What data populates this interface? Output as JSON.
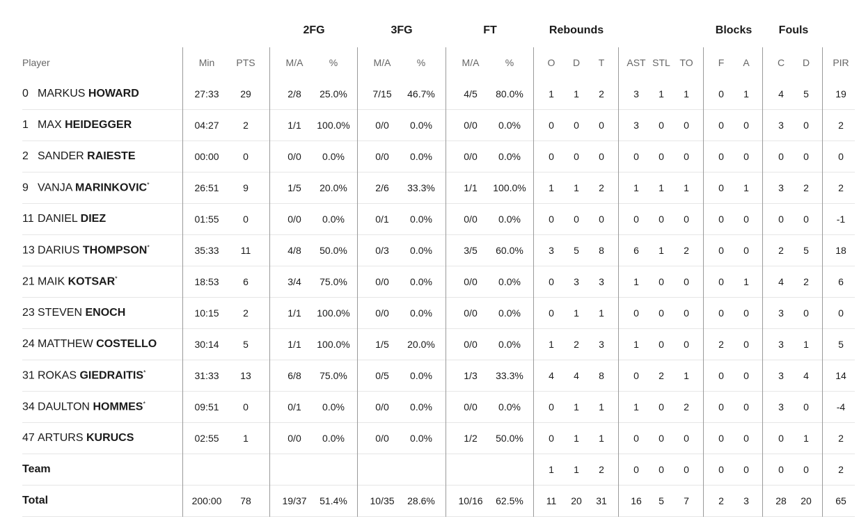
{
  "header_groups": [
    "2FG",
    "3FG",
    "FT",
    "Rebounds",
    "Blocks",
    "Fouls"
  ],
  "columns": [
    "Player",
    "Min",
    "PTS",
    "M/A",
    "%",
    "M/A",
    "%",
    "M/A",
    "%",
    "O",
    "D",
    "T",
    "AST",
    "STL",
    "TO",
    "F",
    "A",
    "C",
    "D",
    "PIR"
  ],
  "players": [
    {
      "number": "0",
      "first": "MARKUS",
      "last": "HOWARD",
      "stats": [
        "27:33",
        "29",
        "2/8",
        "25.0%",
        "7/15",
        "46.7%",
        "4/5",
        "80.0%",
        "1",
        "1",
        "2",
        "3",
        "1",
        "1",
        "0",
        "1",
        "4",
        "5",
        "19"
      ]
    },
    {
      "number": "1",
      "first": "MAX",
      "last": "HEIDEGGER",
      "stats": [
        "04:27",
        "2",
        "1/1",
        "100.0%",
        "0/0",
        "0.0%",
        "0/0",
        "0.0%",
        "0",
        "0",
        "0",
        "3",
        "0",
        "0",
        "0",
        "0",
        "3",
        "0",
        "2"
      ]
    },
    {
      "number": "2",
      "first": "SANDER",
      "last": "RAIESTE",
      "stats": [
        "00:00",
        "0",
        "0/0",
        "0.0%",
        "0/0",
        "0.0%",
        "0/0",
        "0.0%",
        "0",
        "0",
        "0",
        "0",
        "0",
        "0",
        "0",
        "0",
        "0",
        "0",
        "0"
      ]
    },
    {
      "number": "9",
      "first": "VANJA",
      "last": "MARINKOVIC",
      "starter": "*",
      "stats": [
        "26:51",
        "9",
        "1/5",
        "20.0%",
        "2/6",
        "33.3%",
        "1/1",
        "100.0%",
        "1",
        "1",
        "2",
        "1",
        "1",
        "1",
        "0",
        "1",
        "3",
        "2",
        "2"
      ]
    },
    {
      "number": "11",
      "first": "DANIEL",
      "last": "DIEZ",
      "stats": [
        "01:55",
        "0",
        "0/0",
        "0.0%",
        "0/1",
        "0.0%",
        "0/0",
        "0.0%",
        "0",
        "0",
        "0",
        "0",
        "0",
        "0",
        "0",
        "0",
        "0",
        "0",
        "-1"
      ]
    },
    {
      "number": "13",
      "first": "DARIUS",
      "last": "THOMPSON",
      "starter": "*",
      "stats": [
        "35:33",
        "11",
        "4/8",
        "50.0%",
        "0/3",
        "0.0%",
        "3/5",
        "60.0%",
        "3",
        "5",
        "8",
        "6",
        "1",
        "2",
        "0",
        "0",
        "2",
        "5",
        "18"
      ]
    },
    {
      "number": "21",
      "first": "MAIK",
      "last": "KOTSAR",
      "starter": "*",
      "stats": [
        "18:53",
        "6",
        "3/4",
        "75.0%",
        "0/0",
        "0.0%",
        "0/0",
        "0.0%",
        "0",
        "3",
        "3",
        "1",
        "0",
        "0",
        "0",
        "1",
        "4",
        "2",
        "6"
      ]
    },
    {
      "number": "23",
      "first": "STEVEN",
      "last": "ENOCH",
      "stats": [
        "10:15",
        "2",
        "1/1",
        "100.0%",
        "0/0",
        "0.0%",
        "0/0",
        "0.0%",
        "0",
        "1",
        "1",
        "0",
        "0",
        "0",
        "0",
        "0",
        "3",
        "0",
        "0"
      ]
    },
    {
      "number": "24",
      "first": "MATTHEW",
      "last": "COSTELLO",
      "stats": [
        "30:14",
        "5",
        "1/1",
        "100.0%",
        "1/5",
        "20.0%",
        "0/0",
        "0.0%",
        "1",
        "2",
        "3",
        "1",
        "0",
        "0",
        "2",
        "0",
        "3",
        "1",
        "5"
      ]
    },
    {
      "number": "31",
      "first": "ROKAS",
      "last": "GIEDRAITIS",
      "starter": "*",
      "stats": [
        "31:33",
        "13",
        "6/8",
        "75.0%",
        "0/5",
        "0.0%",
        "1/3",
        "33.3%",
        "4",
        "4",
        "8",
        "0",
        "2",
        "1",
        "0",
        "0",
        "3",
        "4",
        "14"
      ]
    },
    {
      "number": "34",
      "first": "DAULTON",
      "last": "HOMMES",
      "starter": "*",
      "stats": [
        "09:51",
        "0",
        "0/1",
        "0.0%",
        "0/0",
        "0.0%",
        "0/0",
        "0.0%",
        "0",
        "1",
        "1",
        "1",
        "0",
        "2",
        "0",
        "0",
        "3",
        "0",
        "-4"
      ]
    },
    {
      "number": "47",
      "first": "ARTURS",
      "last": "KURUCS",
      "stats": [
        "02:55",
        "1",
        "0/0",
        "0.0%",
        "0/0",
        "0.0%",
        "1/2",
        "50.0%",
        "0",
        "1",
        "1",
        "0",
        "0",
        "0",
        "0",
        "0",
        "0",
        "1",
        "2"
      ]
    }
  ],
  "team": {
    "label": "Team",
    "stats": [
      "1",
      "1",
      "2",
      "0",
      "0",
      "0",
      "0",
      "0",
      "0",
      "0",
      "2"
    ]
  },
  "total": {
    "label": "Total",
    "stats": [
      "200:00",
      "78",
      "19/37",
      "51.4%",
      "10/35",
      "28.6%",
      "10/16",
      "62.5%",
      "11",
      "20",
      "31",
      "16",
      "5",
      "7",
      "2",
      "3",
      "28",
      "20",
      "65"
    ]
  }
}
